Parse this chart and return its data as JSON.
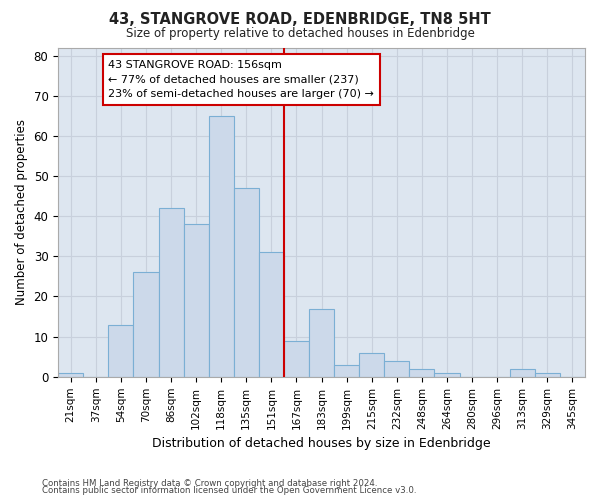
{
  "title": "43, STANGROVE ROAD, EDENBRIDGE, TN8 5HT",
  "subtitle": "Size of property relative to detached houses in Edenbridge",
  "xlabel": "Distribution of detached houses by size in Edenbridge",
  "ylabel": "Number of detached properties",
  "bar_labels": [
    "21sqm",
    "37sqm",
    "54sqm",
    "70sqm",
    "86sqm",
    "102sqm",
    "118sqm",
    "135sqm",
    "151sqm",
    "167sqm",
    "183sqm",
    "199sqm",
    "215sqm",
    "232sqm",
    "248sqm",
    "264sqm",
    "280sqm",
    "296sqm",
    "313sqm",
    "329sqm",
    "345sqm"
  ],
  "bar_values": [
    1,
    0,
    13,
    26,
    42,
    38,
    65,
    47,
    31,
    9,
    17,
    3,
    6,
    4,
    2,
    1,
    0,
    0,
    2,
    1,
    0
  ],
  "bar_color": "#ccd9ea",
  "bar_edge_color": "#7bafd4",
  "vline_x": 8.5,
  "vline_color": "#cc0000",
  "annotation_text": "43 STANGROVE ROAD: 156sqm\n← 77% of detached houses are smaller (237)\n23% of semi-detached houses are larger (70) →",
  "annotation_box_color": "#ffffff",
  "annotation_box_edge": "#cc0000",
  "ylim": [
    0,
    82
  ],
  "yticks": [
    0,
    10,
    20,
    30,
    40,
    50,
    60,
    70,
    80
  ],
  "grid_color": "#c8d0dc",
  "plot_bg_color": "#dde6f0",
  "fig_bg_color": "#ffffff",
  "footnote1": "Contains HM Land Registry data © Crown copyright and database right 2024.",
  "footnote2": "Contains public sector information licensed under the Open Government Licence v3.0."
}
